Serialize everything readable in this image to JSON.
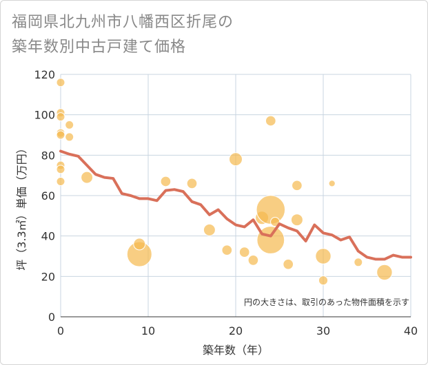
{
  "title_lines": [
    "福岡県北九州市八幡西区折尾の",
    "築年数別中古戸建て価格"
  ],
  "chart_data": {
    "type": "scatter",
    "xlabel": "築年数（年）",
    "ylabel": "坪（3.3㎡）単価（万円）",
    "xlim": [
      0,
      40
    ],
    "ylim": [
      0,
      120
    ],
    "x_ticks": [
      0,
      10,
      20,
      30,
      40
    ],
    "y_ticks": [
      0,
      20,
      40,
      60,
      80,
      100,
      120
    ],
    "grid": true,
    "annotation": "円の大きさは、取引のあった物件面積を示す",
    "colors": {
      "bubble": "#f5b94f",
      "line": "#d9705a",
      "grid": "#c8d4e0"
    },
    "bubbles": [
      {
        "x": 0,
        "y": 116,
        "size": 1
      },
      {
        "x": 0,
        "y": 101,
        "size": 1
      },
      {
        "x": 0,
        "y": 99,
        "size": 1
      },
      {
        "x": 0,
        "y": 91,
        "size": 1
      },
      {
        "x": 0,
        "y": 90,
        "size": 1
      },
      {
        "x": 0,
        "y": 75,
        "size": 1
      },
      {
        "x": 0,
        "y": 73,
        "size": 1
      },
      {
        "x": 0,
        "y": 67,
        "size": 1
      },
      {
        "x": 1,
        "y": 95,
        "size": 1
      },
      {
        "x": 1,
        "y": 89,
        "size": 1
      },
      {
        "x": 3,
        "y": 69,
        "size": 2
      },
      {
        "x": 9,
        "y": 31,
        "size": 9
      },
      {
        "x": 9,
        "y": 36,
        "size": 2
      },
      {
        "x": 12,
        "y": 67,
        "size": 1.5
      },
      {
        "x": 15,
        "y": 66,
        "size": 1.5
      },
      {
        "x": 17,
        "y": 43,
        "size": 2
      },
      {
        "x": 19,
        "y": 33,
        "size": 1.5
      },
      {
        "x": 20,
        "y": 78,
        "size": 2.5
      },
      {
        "x": 21,
        "y": 32,
        "size": 1.5
      },
      {
        "x": 22,
        "y": 28,
        "size": 1.5
      },
      {
        "x": 23,
        "y": 49,
        "size": 2.5
      },
      {
        "x": 24,
        "y": 97,
        "size": 1.5
      },
      {
        "x": 24,
        "y": 53,
        "size": 12
      },
      {
        "x": 24,
        "y": 38,
        "size": 11
      },
      {
        "x": 24.5,
        "y": 47,
        "size": 1.2
      },
      {
        "x": 26,
        "y": 26,
        "size": 1.5
      },
      {
        "x": 27,
        "y": 65,
        "size": 1.5
      },
      {
        "x": 27,
        "y": 48,
        "size": 2
      },
      {
        "x": 30,
        "y": 30,
        "size": 3.5
      },
      {
        "x": 30,
        "y": 18,
        "size": 1.2
      },
      {
        "x": 31,
        "y": 66,
        "size": 0.6
      },
      {
        "x": 34,
        "y": 27,
        "size": 1
      },
      {
        "x": 37,
        "y": 22,
        "size": 3.5
      }
    ],
    "trend_line": {
      "x": [
        0,
        1,
        2,
        3,
        4,
        5,
        6,
        7,
        8,
        9,
        10,
        11,
        12,
        13,
        14,
        15,
        16,
        17,
        18,
        19,
        20,
        21,
        22,
        23,
        24,
        25,
        26,
        27,
        28,
        29,
        30,
        31,
        32,
        33,
        34,
        35,
        36,
        37,
        38,
        39,
        40
      ],
      "y": [
        82,
        80.5,
        79.5,
        75,
        70.5,
        69,
        68.5,
        61,
        60,
        58.5,
        58.5,
        57.5,
        62.5,
        63,
        62,
        57,
        55.5,
        50.5,
        53,
        48.5,
        45.5,
        44.5,
        48,
        41,
        40,
        46,
        44,
        42.5,
        37.5,
        45.5,
        41.5,
        40.5,
        38,
        39.5,
        32.5,
        29.5,
        28.5,
        28.5,
        30.5,
        29.5,
        29.5
      ]
    }
  }
}
